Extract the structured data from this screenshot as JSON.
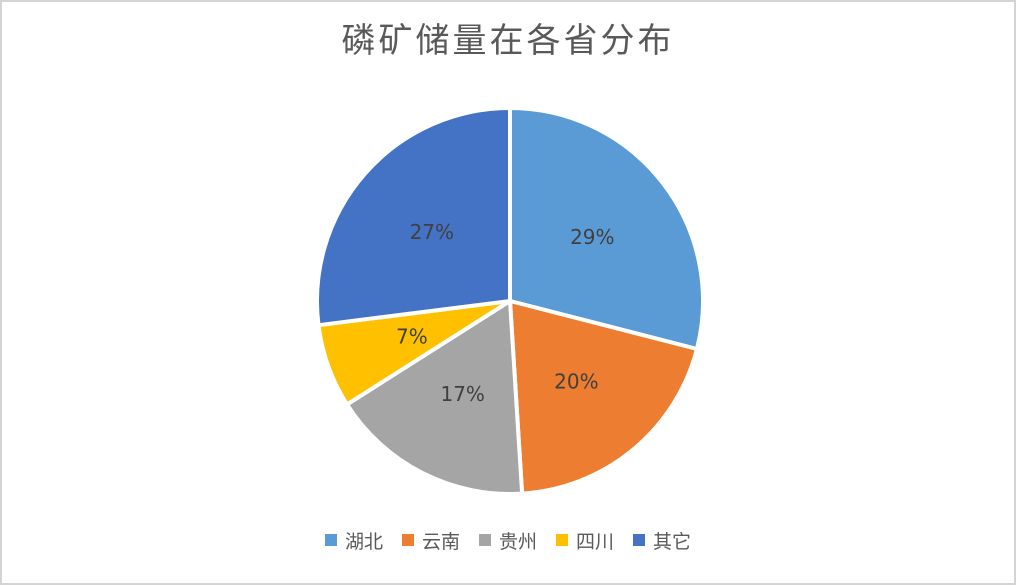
{
  "chart_data": {
    "type": "pie",
    "title": "磷矿储量在各省分布",
    "categories": [
      "湖北",
      "云南",
      "贵州",
      "四川",
      "其它"
    ],
    "values": [
      29,
      20,
      17,
      7,
      27
    ],
    "labels": [
      "29%",
      "20%",
      "17%",
      "7%",
      "27%"
    ],
    "colors": [
      "#5B9BD5",
      "#ED7D31",
      "#A5A5A5",
      "#FFC000",
      "#4472C4"
    ],
    "start_angle_deg": 0,
    "direction": "clockwise",
    "legend_position": "bottom",
    "label_color": "#404040",
    "title_color": "#595959",
    "slice_separator_color": "#FFFFFF"
  }
}
